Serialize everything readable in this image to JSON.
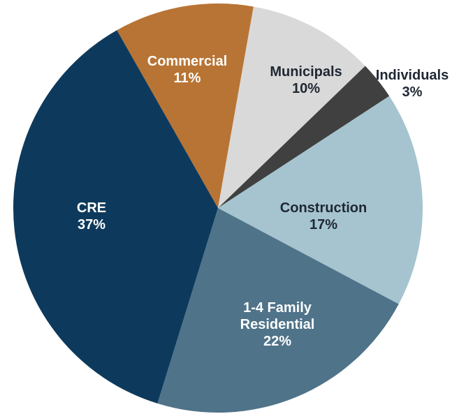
{
  "chart_data": {
    "type": "pie",
    "categories": [
      "Commercial",
      "Municipals",
      "Individuals",
      "Construction",
      "1-4 Family Residential",
      "CRE"
    ],
    "values": [
      11,
      10,
      3,
      17,
      22,
      37
    ],
    "value_labels": [
      "11%",
      "10%",
      "3%",
      "17%",
      "22%",
      "37%"
    ],
    "colors": [
      "#b87434",
      "#d9d9d9",
      "#404040",
      "#a5c4d0",
      "#4f7389",
      "#0d3a5c"
    ]
  }
}
